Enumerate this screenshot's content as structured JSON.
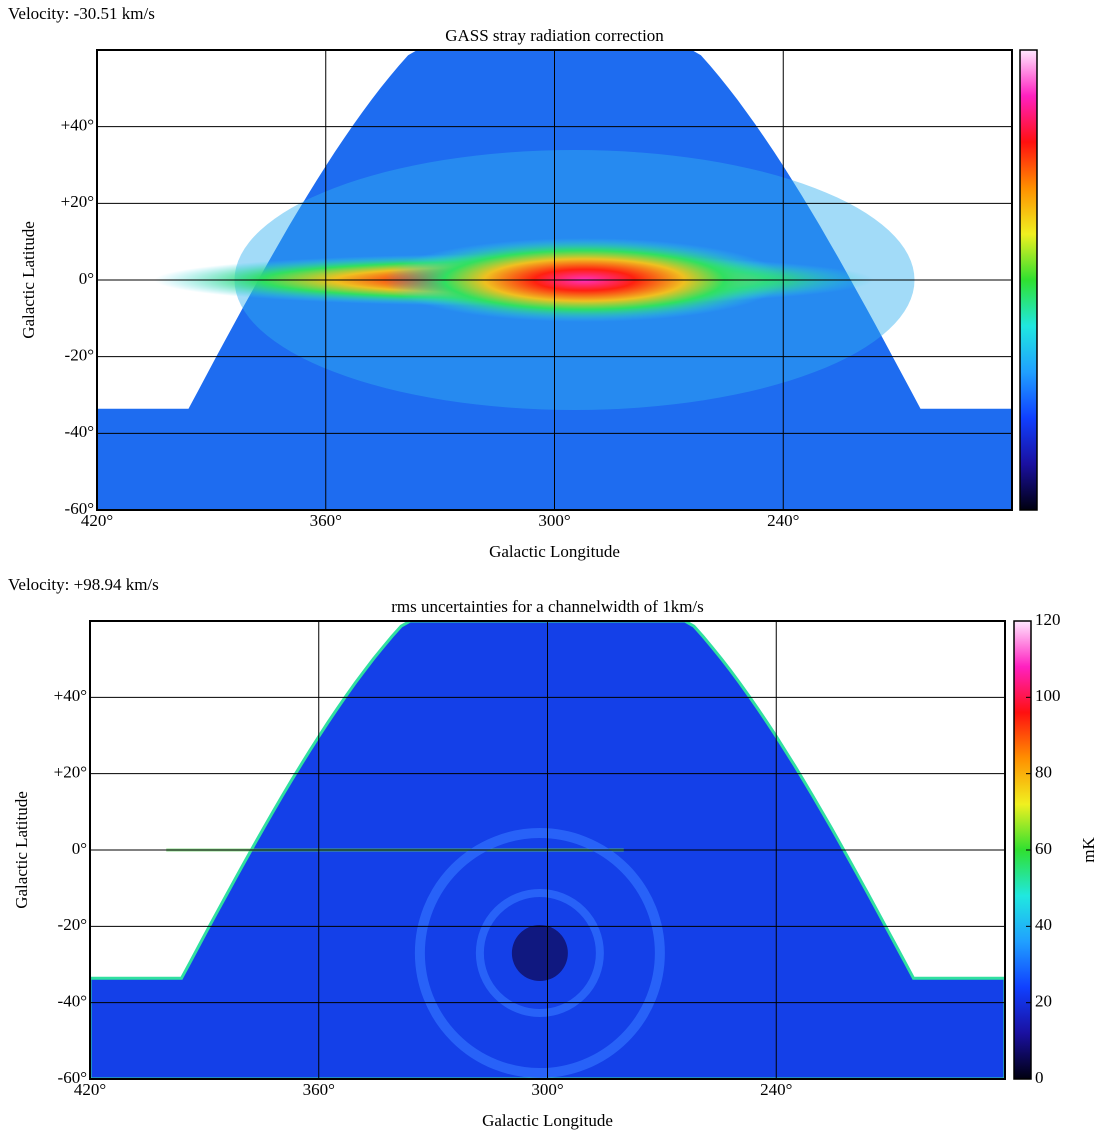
{
  "chart_data": [
    {
      "type": "map",
      "annotation": "Velocity: -30.51 km/s",
      "title": "GASS stray radiation correction",
      "xlabel": "Galactic Longitude",
      "ylabel": "Galactic Latitude",
      "xlim": [
        420,
        180
      ],
      "ylim": [
        -60,
        60
      ],
      "xticks": [
        {
          "value": 420,
          "label": "420°"
        },
        {
          "value": 360,
          "label": "360°"
        },
        {
          "value": 300,
          "label": "300°"
        },
        {
          "value": 240,
          "label": "240°"
        }
      ],
      "yticks": [
        {
          "value": -60,
          "label": "-60°"
        },
        {
          "value": -40,
          "label": "-40°"
        },
        {
          "value": -20,
          "label": "-20°"
        },
        {
          "value": 0,
          "label": "0°"
        },
        {
          "value": 20,
          "label": "+20°"
        },
        {
          "value": 40,
          "label": "+40°"
        }
      ],
      "grid": true,
      "colormap": [
        "#000010",
        "#1a10a0",
        "#1040ff",
        "#20a0ff",
        "#20e8e0",
        "#30e030",
        "#f0f020",
        "#ff9000",
        "#ff1010",
        "#ff20c0",
        "#ffe8ff"
      ]
    },
    {
      "type": "map",
      "annotation": "Velocity: +98.94 km/s",
      "title": "rms uncertainties for a channelwidth of 1km/s",
      "xlabel": "Galactic Longitude",
      "ylabel": "Galactic Latitude",
      "xlim": [
        420,
        180
      ],
      "ylim": [
        -60,
        60
      ],
      "xticks": [
        {
          "value": 420,
          "label": "420°"
        },
        {
          "value": 360,
          "label": "360°"
        },
        {
          "value": 300,
          "label": "300°"
        },
        {
          "value": 240,
          "label": "240°"
        }
      ],
      "yticks": [
        {
          "value": -60,
          "label": "-60°"
        },
        {
          "value": -40,
          "label": "-40°"
        },
        {
          "value": -20,
          "label": "-20°"
        },
        {
          "value": 0,
          "label": "0°"
        },
        {
          "value": 20,
          "label": "+20°"
        },
        {
          "value": 40,
          "label": "+40°"
        }
      ],
      "grid": true,
      "colormap": [
        "#000010",
        "#1a10a0",
        "#1040ff",
        "#20a0ff",
        "#20e8e0",
        "#30e030",
        "#f0f020",
        "#ff9000",
        "#ff1010",
        "#ff20c0",
        "#ffe8ff"
      ],
      "clim": [
        0,
        120
      ],
      "cticks": [
        0,
        20,
        40,
        60,
        80,
        100,
        120
      ],
      "clabel": "mK"
    }
  ]
}
